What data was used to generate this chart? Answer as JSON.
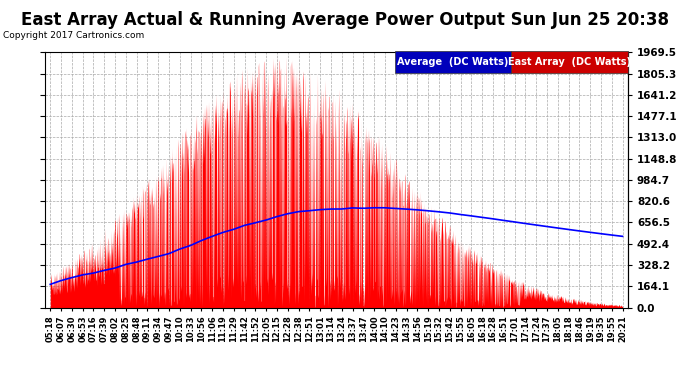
{
  "title": "East Array Actual & Running Average Power Output Sun Jun 25 20:38",
  "copyright": "Copyright 2017 Cartronics.com",
  "legend_avg": "Average  (DC Watts)",
  "legend_east": "East Array  (DC Watts)",
  "yticks": [
    0.0,
    164.1,
    328.2,
    492.4,
    656.5,
    820.6,
    984.7,
    1148.8,
    1313.0,
    1477.1,
    1641.2,
    1805.3,
    1969.5
  ],
  "ylim": [
    0,
    1969.5
  ],
  "bg_color": "#ffffff",
  "plot_bg_color": "#ffffff",
  "grid_color": "#aaaaaa",
  "bar_color": "#ff0000",
  "line_color": "#0000ff",
  "title_fontsize": 12,
  "xtick_labels": [
    "05:18",
    "06:07",
    "06:30",
    "06:53",
    "07:16",
    "07:39",
    "08:02",
    "08:25",
    "08:48",
    "09:11",
    "09:34",
    "09:47",
    "10:10",
    "10:33",
    "10:56",
    "11:06",
    "11:19",
    "11:29",
    "11:42",
    "11:52",
    "12:05",
    "12:15",
    "12:28",
    "12:38",
    "12:51",
    "13:01",
    "13:14",
    "13:24",
    "13:37",
    "13:47",
    "14:00",
    "14:10",
    "14:23",
    "14:33",
    "14:56",
    "15:19",
    "15:32",
    "15:42",
    "15:55",
    "16:05",
    "16:18",
    "16:28",
    "16:51",
    "17:01",
    "17:14",
    "17:24",
    "17:37",
    "18:05",
    "18:18",
    "18:46",
    "19:19",
    "19:35",
    "19:55",
    "20:21"
  ]
}
